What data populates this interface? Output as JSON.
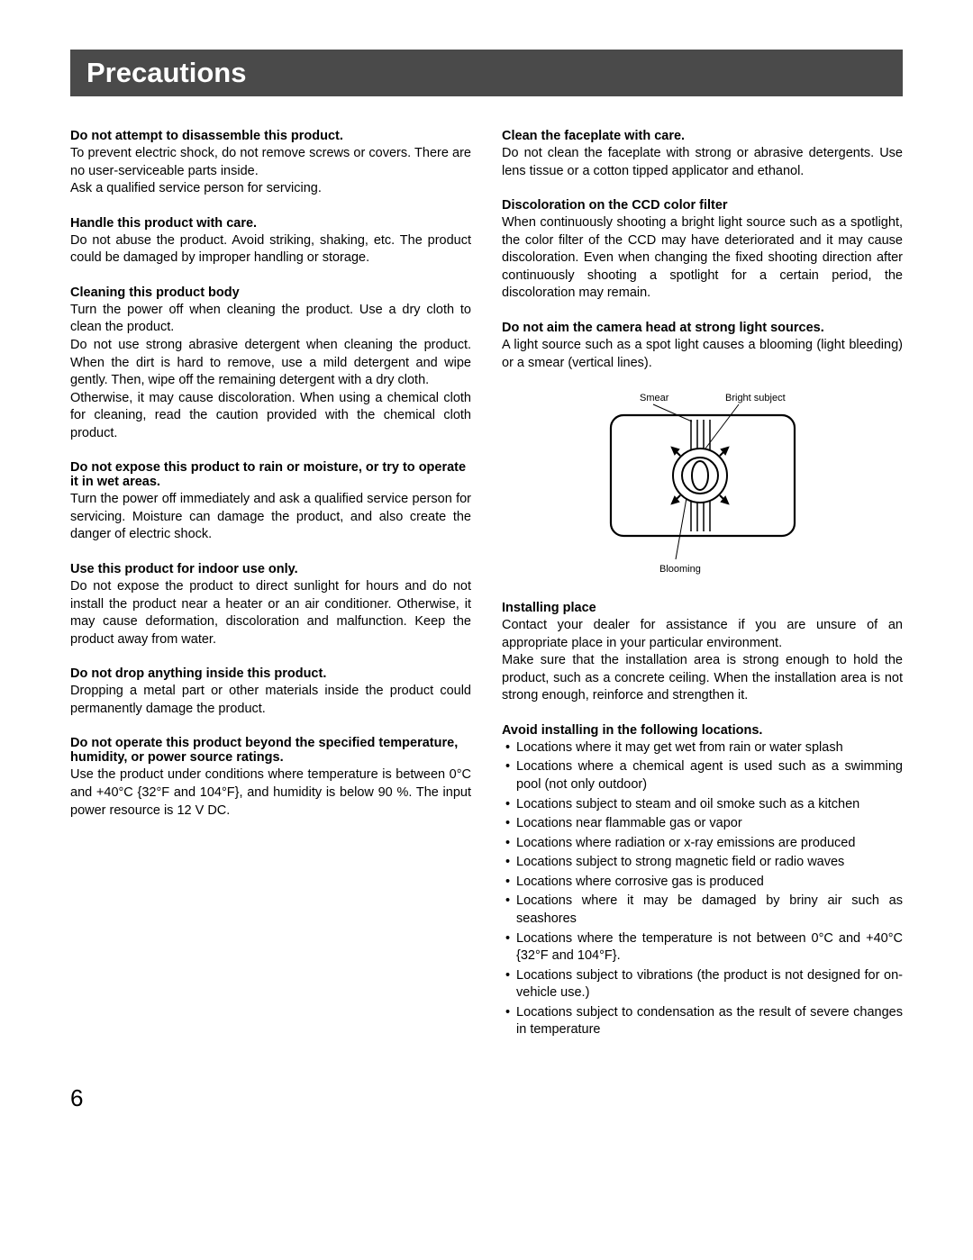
{
  "page_title": "Precautions",
  "page_number": "6",
  "left_column": [
    {
      "heading": "Do not attempt to disassemble this product.",
      "paragraphs": [
        "To prevent electric shock, do not remove screws or covers. There are no user-serviceable parts inside.",
        "Ask a qualified service person for servicing."
      ]
    },
    {
      "heading": "Handle this product with care.",
      "paragraphs": [
        "Do not abuse the product. Avoid striking, shaking, etc. The product could be damaged by improper handling or storage."
      ]
    },
    {
      "heading": "Cleaning this product body",
      "paragraphs": [
        "Turn the power off when cleaning the product. Use a dry cloth to clean the product.",
        "Do not use strong abrasive detergent when cleaning the product. When the dirt is hard to remove, use a mild detergent and wipe gently. Then, wipe off the remaining detergent with a dry cloth.",
        "Otherwise, it may cause discoloration. When using a chemical cloth for cleaning, read the caution provided with the chemical cloth product."
      ]
    },
    {
      "heading": "Do not expose this product to rain or moisture, or try to operate it in wet areas.",
      "paragraphs": [
        "Turn the power off immediately and ask a qualified service person for servicing. Moisture can damage the product, and also create the danger of electric shock."
      ]
    },
    {
      "heading": "Use this product for indoor use only.",
      "paragraphs": [
        "Do not expose the product to direct sunlight for hours and do not install the product near a heater or an air conditioner. Otherwise, it may cause deformation, discoloration and malfunction. Keep the product away from water."
      ]
    },
    {
      "heading": "Do not drop anything inside this product.",
      "paragraphs": [
        "Dropping a metal part or other materials inside the product could permanently damage the product."
      ]
    },
    {
      "heading": "Do not operate this product beyond the specified temperature, humidity, or power source ratings.",
      "paragraphs": [
        "Use the product under conditions where temperature is between 0°C and +40°C {32°F and 104°F}, and humidity is below 90 %. The input power resource is 12 V DC."
      ]
    }
  ],
  "right_column": [
    {
      "heading": "Clean the faceplate with care.",
      "paragraphs": [
        "Do not clean the faceplate with strong or abrasive detergents. Use lens tissue or a cotton tipped applicator and ethanol."
      ]
    },
    {
      "heading": "Discoloration on the CCD color filter",
      "paragraphs": [
        "When continuously shooting a bright light source such as a spotlight, the color filter of the CCD may have deteriorated and it may cause discoloration. Even when changing the fixed shooting direction after continuously shooting a spotlight for a certain period, the discoloration may remain."
      ]
    },
    {
      "heading": "Do not aim the camera head at strong light sources.",
      "paragraphs": [
        "A light source such as a spot light causes a blooming (light bleeding) or a smear (vertical lines)."
      ]
    }
  ],
  "diagram": {
    "labels": {
      "smear": "Smear",
      "bright_subject": "Bright subject",
      "blooming": "Blooming"
    },
    "colors": {
      "stroke": "#000000",
      "fill": "#ffffff"
    },
    "label_fontsize": 11
  },
  "right_column_after_diagram": [
    {
      "heading": "Installing place",
      "paragraphs": [
        "Contact your dealer for assistance if you are unsure of an appropriate place in your particular environment.",
        "Make sure that the installation area is strong enough to hold the product, such as a concrete ceiling. When the installation area is not strong enough, reinforce and strengthen it."
      ]
    }
  ],
  "avoid_section": {
    "heading": "Avoid installing in the following locations.",
    "items": [
      "Locations where it may get wet from rain or water splash",
      "Locations where a chemical agent is used such as a swimming pool (not only outdoor)",
      "Locations subject to steam and oil smoke such as a kitchen",
      "Locations near flammable gas or vapor",
      "Locations where radiation or x-ray emissions are produced",
      "Locations subject to strong magnetic field or radio waves",
      "Locations where corrosive gas is produced",
      "Locations where it may be damaged by briny air such as seashores",
      "Locations where the temperature is not between 0°C and +40°C {32°F and 104°F}.",
      "Locations subject to vibrations (the product is not designed for on-vehicle use.)",
      "Locations subject to condensation as the result of severe changes in temperature"
    ]
  }
}
